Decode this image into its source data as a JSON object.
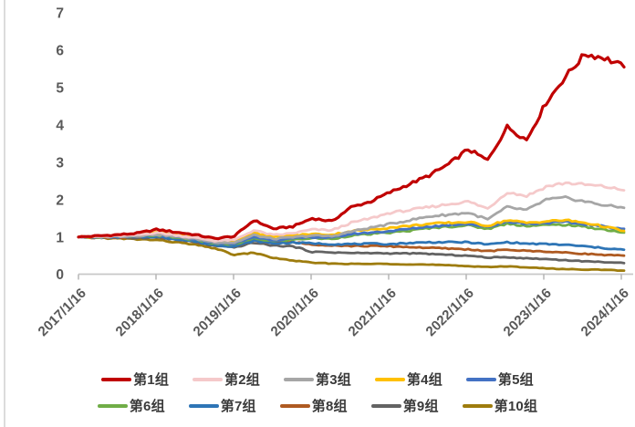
{
  "chart_data": {
    "type": "line",
    "title": "",
    "xlabel": "",
    "ylabel": "",
    "ylim": [
      0,
      7
    ],
    "yticks": [
      0,
      1,
      2,
      3,
      4,
      5,
      6,
      7
    ],
    "grid": false,
    "legend_position": "bottom",
    "legend_rows": [
      5,
      5
    ],
    "x_tick_labels": [
      "2017/1/16",
      "2018/1/16",
      "2019/1/16",
      "2020/1/16",
      "2021/1/16",
      "2022/1/16",
      "2023/1/16",
      "2024/1/16"
    ],
    "x_sampling": "quarterly values from 2017/1/16 to 2024/1/16 (29 points per series)",
    "axis_text_color": "#595959",
    "axis_line_color": "#c8c8c8",
    "series": [
      {
        "name": "第1组",
        "color": "#C00000",
        "values": [
          1.0,
          1.03,
          1.06,
          1.1,
          1.2,
          1.13,
          1.06,
          0.96,
          1.02,
          1.45,
          1.22,
          1.28,
          1.5,
          1.42,
          1.8,
          1.95,
          2.2,
          2.42,
          2.65,
          2.95,
          3.35,
          3.05,
          3.95,
          3.6,
          4.6,
          5.3,
          5.9,
          5.8,
          5.55
        ]
      },
      {
        "name": "第2组",
        "color": "#F5C9CA",
        "values": [
          1.0,
          1.01,
          1.03,
          1.05,
          1.12,
          1.05,
          0.98,
          0.9,
          0.92,
          1.18,
          1.05,
          1.1,
          1.2,
          1.18,
          1.38,
          1.5,
          1.65,
          1.72,
          1.8,
          1.88,
          1.95,
          1.76,
          2.2,
          2.1,
          2.35,
          2.45,
          2.4,
          2.35,
          2.25
        ]
      },
      {
        "name": "第3组",
        "color": "#A6A6A6",
        "values": [
          1.0,
          1.0,
          1.02,
          1.03,
          1.07,
          1.01,
          0.95,
          0.86,
          0.85,
          1.05,
          0.95,
          0.99,
          1.04,
          1.02,
          1.15,
          1.25,
          1.35,
          1.45,
          1.55,
          1.6,
          1.65,
          1.47,
          1.8,
          1.72,
          2.0,
          2.05,
          1.95,
          1.85,
          1.78
        ]
      },
      {
        "name": "第4组",
        "color": "#FFC000",
        "values": [
          1.0,
          1.02,
          1.04,
          1.07,
          1.12,
          1.06,
          0.99,
          0.89,
          0.9,
          1.12,
          1.0,
          1.04,
          1.08,
          1.06,
          1.16,
          1.2,
          1.25,
          1.3,
          1.35,
          1.38,
          1.4,
          1.3,
          1.45,
          1.38,
          1.42,
          1.45,
          1.38,
          1.28,
          1.16
        ]
      },
      {
        "name": "第5组",
        "color": "#4472C4",
        "values": [
          1.0,
          1.0,
          1.01,
          1.03,
          1.06,
          1.0,
          0.93,
          0.84,
          0.82,
          1.0,
          0.92,
          0.96,
          1.0,
          0.98,
          1.08,
          1.12,
          1.16,
          1.22,
          1.28,
          1.32,
          1.36,
          1.26,
          1.42,
          1.35,
          1.38,
          1.4,
          1.34,
          1.28,
          1.22
        ]
      },
      {
        "name": "第6组",
        "color": "#70AD47",
        "values": [
          1.0,
          1.0,
          1.01,
          1.02,
          1.05,
          0.99,
          0.92,
          0.82,
          0.8,
          0.96,
          0.89,
          0.93,
          0.97,
          0.95,
          1.04,
          1.08,
          1.12,
          1.17,
          1.24,
          1.28,
          1.31,
          1.22,
          1.36,
          1.3,
          1.32,
          1.33,
          1.27,
          1.2,
          1.12
        ]
      },
      {
        "name": "第7组",
        "color": "#2E75B6",
        "values": [
          1.0,
          0.99,
          1.0,
          1.0,
          1.01,
          0.95,
          0.88,
          0.78,
          0.75,
          0.9,
          0.83,
          0.85,
          0.83,
          0.81,
          0.81,
          0.82,
          0.81,
          0.84,
          0.86,
          0.86,
          0.86,
          0.8,
          0.86,
          0.82,
          0.81,
          0.79,
          0.75,
          0.7,
          0.66
        ]
      },
      {
        "name": "第8组",
        "color": "#AE5A21",
        "values": [
          1.0,
          0.99,
          0.99,
          1.0,
          1.02,
          0.96,
          0.89,
          0.79,
          0.76,
          0.92,
          0.84,
          0.86,
          0.8,
          0.78,
          0.76,
          0.76,
          0.75,
          0.73,
          0.71,
          0.69,
          0.67,
          0.62,
          0.66,
          0.63,
          0.61,
          0.58,
          0.55,
          0.52,
          0.5
        ]
      },
      {
        "name": "第9组",
        "color": "#636363",
        "values": [
          1.0,
          0.99,
          0.98,
          0.98,
          0.99,
          0.93,
          0.86,
          0.76,
          0.72,
          0.85,
          0.77,
          0.75,
          0.6,
          0.59,
          0.57,
          0.57,
          0.56,
          0.56,
          0.55,
          0.52,
          0.5,
          0.45,
          0.46,
          0.43,
          0.41,
          0.38,
          0.35,
          0.33,
          0.3
        ]
      },
      {
        "name": "第10组",
        "color": "#9E7C0E",
        "values": [
          1.0,
          0.98,
          0.96,
          0.94,
          0.92,
          0.86,
          0.79,
          0.7,
          0.52,
          0.58,
          0.44,
          0.37,
          0.31,
          0.29,
          0.28,
          0.28,
          0.28,
          0.27,
          0.26,
          0.24,
          0.22,
          0.2,
          0.21,
          0.19,
          0.16,
          0.14,
          0.13,
          0.12,
          0.1
        ]
      }
    ]
  }
}
